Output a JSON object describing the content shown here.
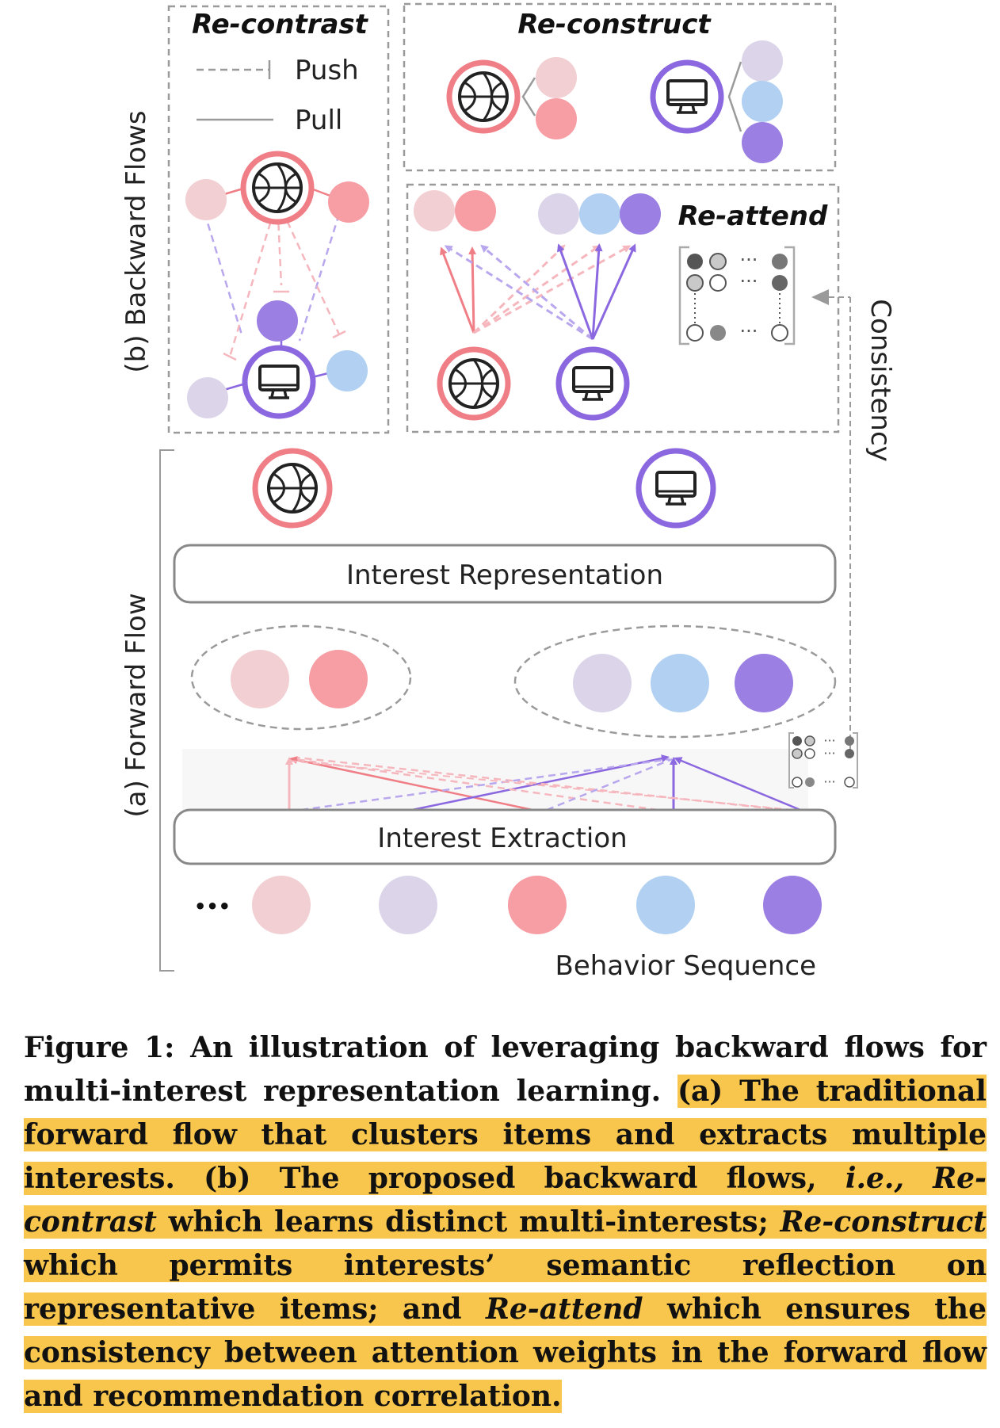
{
  "labels": {
    "backward_flows": "(b) Backward Flows",
    "forward_flow": "(a) Forward Flow",
    "re_contrast": "Re-contrast",
    "re_construct": "Re-construct",
    "re_attend": "Re-attend",
    "push": "Push",
    "pull": "Pull",
    "consistency": "Consistency",
    "interest_representation": "Interest Representation",
    "interest_extraction": "Interest Extraction",
    "behavior_sequence": "Behavior Sequence",
    "ellipsis": "•••",
    "matrix_dots": "···"
  },
  "colors": {
    "red_light": "#f2cfd3",
    "red": "#f79ea4",
    "red_ring": "#f07e86",
    "purple_light": "#dcd5ea",
    "blue": "#b1d0f2",
    "purple": "#9c7fe2",
    "purple_ring": "#8b68e0",
    "dash": "#9a9a9a",
    "highlight": "#f8c64c"
  },
  "icons": {
    "interest_a": "basketball-icon",
    "interest_b": "monitor-icon"
  },
  "caption": {
    "lead": "Figure 1: An illustration of leveraging backward flows for multi-interest representation learning.",
    "a": "(a) The traditional forward flow that clusters items and extracts multiple interests.",
    "b_start": "(b) The proposed backward flows,",
    "ie": "i.e.,",
    "re_contrast": "Re-contrast",
    "re_contrast_desc": "which learns distinct multi-interests;",
    "re_construct": "Re-construct",
    "re_construct_desc": "which permits interests’ semantic reflection on representative items; and",
    "re_attend": "Re-attend",
    "re_attend_desc": "which ensures the consistency between attention weights in the forward flow and recommendation correlation."
  }
}
